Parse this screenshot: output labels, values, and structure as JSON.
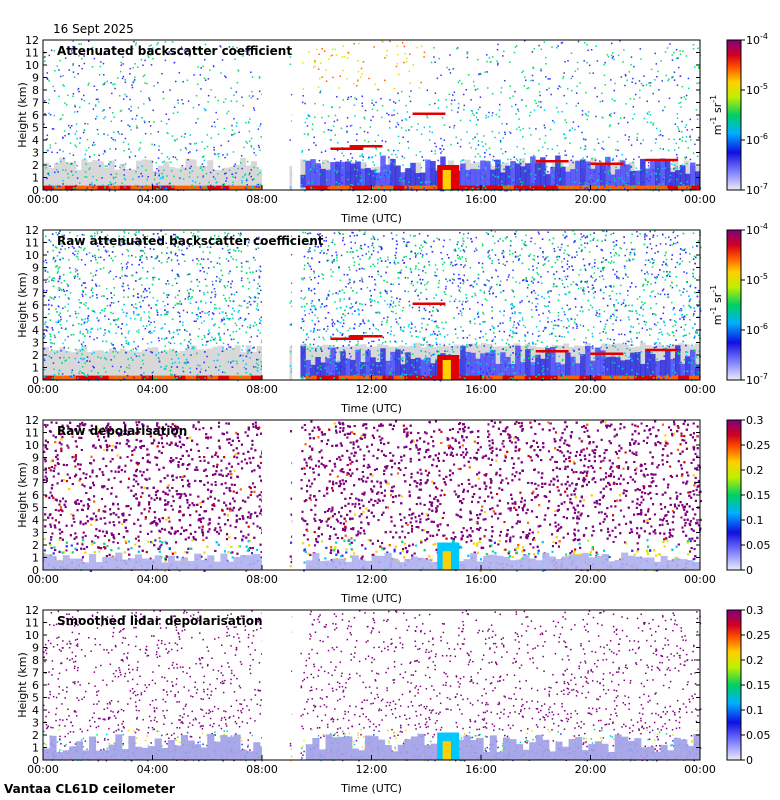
{
  "header": {
    "date": "16 Sept 2025"
  },
  "footer": {
    "station": "Vantaa CL61D ceilometer"
  },
  "palette": {
    "background": "#ffffff",
    "noise_grey": "#d8d8d8",
    "stops": [
      "#c8c8f0",
      "#3030ff",
      "#00c8ff",
      "#00e070",
      "#c8f000",
      "#ffd000",
      "#ff6000",
      "#e00000",
      "#800080"
    ]
  },
  "chart_data": [
    {
      "type": "heatmap",
      "title": "Attenuated backscatter coefficient",
      "xlabel": "Time (UTC)",
      "ylabel": "Height (km)",
      "x_ticks": [
        "00:00",
        "04:00",
        "08:00",
        "12:00",
        "16:00",
        "20:00",
        "00:00"
      ],
      "y_ticks": [
        "0",
        "1",
        "2",
        "3",
        "4",
        "5",
        "6",
        "7",
        "8",
        "9",
        "10",
        "11",
        "12"
      ],
      "ylim": [
        0,
        12
      ],
      "xlim_hours": [
        0,
        24
      ],
      "colorbar": {
        "scale": "log",
        "ticks": [
          "10",
          "10",
          "10",
          "10"
        ],
        "exponents": [
          "-7",
          "-6",
          "-5",
          "-4"
        ],
        "unit_base": "m",
        "unit_exp1": "-1",
        "unit_sr": "sr",
        "unit_exp2": "-1"
      },
      "data_gaps_hours": [
        [
          8.0,
          9.0
        ],
        [
          9.1,
          9.4
        ]
      ]
    },
    {
      "type": "heatmap",
      "title": "Raw attenuated backscatter coefficient",
      "xlabel": "Time (UTC)",
      "ylabel": "Height (km)",
      "x_ticks": [
        "00:00",
        "04:00",
        "08:00",
        "12:00",
        "16:00",
        "20:00",
        "00:00"
      ],
      "y_ticks": [
        "0",
        "1",
        "2",
        "3",
        "4",
        "5",
        "6",
        "7",
        "8",
        "9",
        "10",
        "11",
        "12"
      ],
      "ylim": [
        0,
        12
      ],
      "xlim_hours": [
        0,
        24
      ],
      "colorbar": {
        "scale": "log",
        "ticks": [
          "10",
          "10",
          "10",
          "10"
        ],
        "exponents": [
          "-7",
          "-6",
          "-5",
          "-4"
        ],
        "unit_base": "m",
        "unit_exp1": "-1",
        "unit_sr": "sr",
        "unit_exp2": "-1"
      },
      "data_gaps_hours": [
        [
          8.0,
          9.0
        ],
        [
          9.1,
          9.4
        ]
      ]
    },
    {
      "type": "heatmap",
      "title": "Raw depolarisation",
      "xlabel": "Time (UTC)",
      "ylabel": "Height (km)",
      "x_ticks": [
        "00:00",
        "04:00",
        "08:00",
        "12:00",
        "16:00",
        "20:00",
        "00:00"
      ],
      "y_ticks": [
        "0",
        "1",
        "2",
        "3",
        "4",
        "5",
        "6",
        "7",
        "8",
        "9",
        "10",
        "11",
        "12"
      ],
      "ylim": [
        0,
        12
      ],
      "xlim_hours": [
        0,
        24
      ],
      "colorbar": {
        "scale": "linear",
        "ticks": [
          "0",
          "0.05",
          "0.1",
          "0.15",
          "0.2",
          "0.25",
          "0.3"
        ],
        "range": [
          0,
          0.3
        ]
      },
      "data_gaps_hours": [
        [
          8.0,
          9.0
        ],
        [
          9.1,
          9.4
        ]
      ]
    },
    {
      "type": "heatmap",
      "title": "Smoothed lidar depolarisation",
      "xlabel": "Time (UTC)",
      "ylabel": "Height (km)",
      "x_ticks": [
        "00:00",
        "04:00",
        "08:00",
        "12:00",
        "16:00",
        "20:00",
        "00:00"
      ],
      "y_ticks": [
        "0",
        "1",
        "2",
        "3",
        "4",
        "5",
        "6",
        "7",
        "8",
        "9",
        "10",
        "11",
        "12"
      ],
      "ylim": [
        0,
        12
      ],
      "xlim_hours": [
        0,
        24
      ],
      "colorbar": {
        "scale": "linear",
        "ticks": [
          "0",
          "0.05",
          "0.1",
          "0.15",
          "0.2",
          "0.25",
          "0.3"
        ],
        "range": [
          0,
          0.3
        ]
      },
      "data_gaps_hours": [
        [
          8.0,
          9.0
        ],
        [
          9.1,
          9.4
        ]
      ]
    }
  ]
}
